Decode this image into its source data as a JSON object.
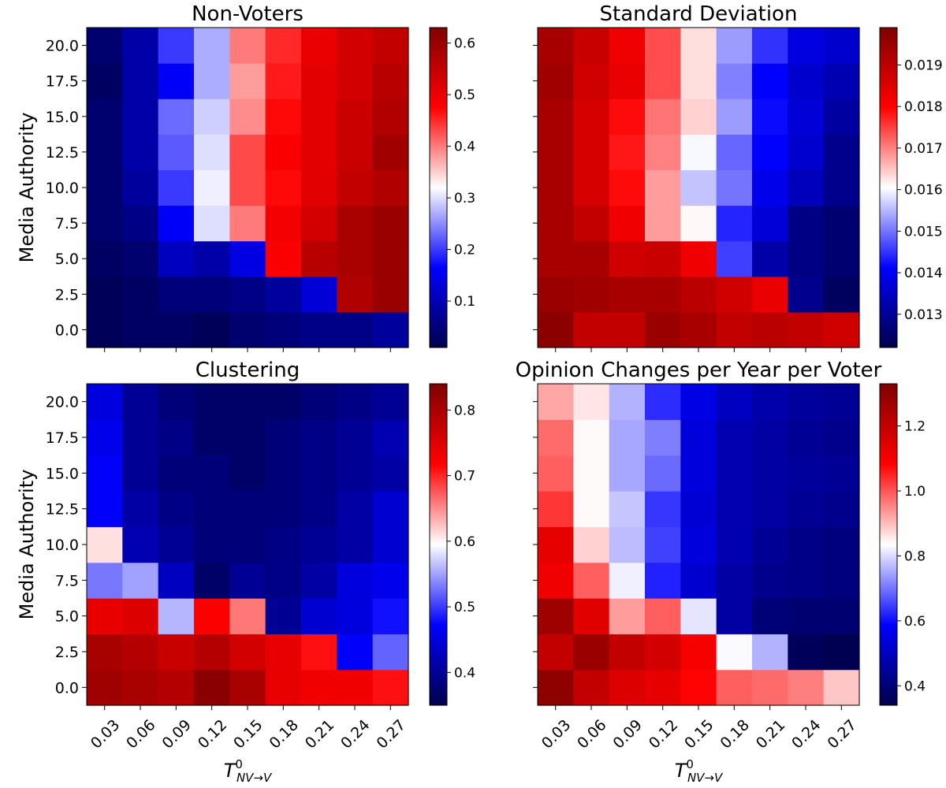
{
  "shared_axes": {
    "x_ticks": [
      "0.03",
      "0.06",
      "0.09",
      "0.12",
      "0.15",
      "0.18",
      "0.21",
      "0.24",
      "0.27"
    ],
    "y_ticks": [
      "0.0",
      "2.5",
      "5.0",
      "7.5",
      "10.0",
      "12.5",
      "15.0",
      "17.5",
      "20.0"
    ],
    "xlabel_main": "T",
    "xlabel_sup": "0",
    "xlabel_sub": "NV→V",
    "ylabel": "Media Authority"
  },
  "colormap": {
    "low": "#00004c",
    "mid": "#ffffff",
    "high": "#800000",
    "name": "seismic"
  },
  "chart_data": [
    {
      "type": "heatmap",
      "title": "Non-Voters",
      "x": [
        "0.03",
        "0.06",
        "0.09",
        "0.12",
        "0.15",
        "0.18",
        "0.21",
        "0.24",
        "0.27"
      ],
      "y": [
        "0.0",
        "2.5",
        "5.0",
        "7.5",
        "10.0",
        "12.5",
        "15.0",
        "17.5",
        "20.0"
      ],
      "vmin": 0.01,
      "vmax": 0.63,
      "colorbar_ticks": [
        "0.1",
        "0.2",
        "0.3",
        "0.4",
        "0.5",
        "0.6"
      ],
      "colorbar_tick_values": [
        0.1,
        0.2,
        0.3,
        0.4,
        0.5,
        0.6
      ],
      "values": [
        [
          0.02,
          0.03,
          0.03,
          0.02,
          0.04,
          0.05,
          0.06,
          0.06,
          0.08
        ],
        [
          0.02,
          0.03,
          0.05,
          0.05,
          0.06,
          0.08,
          0.13,
          0.57,
          0.6
        ],
        [
          0.03,
          0.04,
          0.11,
          0.09,
          0.14,
          0.48,
          0.56,
          0.58,
          0.6
        ],
        [
          0.04,
          0.06,
          0.16,
          0.3,
          0.4,
          0.49,
          0.53,
          0.58,
          0.6
        ],
        [
          0.04,
          0.08,
          0.2,
          0.31,
          0.43,
          0.47,
          0.51,
          0.55,
          0.57
        ],
        [
          0.04,
          0.09,
          0.22,
          0.3,
          0.43,
          0.48,
          0.51,
          0.54,
          0.59
        ],
        [
          0.04,
          0.09,
          0.23,
          0.29,
          0.39,
          0.47,
          0.51,
          0.54,
          0.57
        ],
        [
          0.03,
          0.09,
          0.16,
          0.27,
          0.38,
          0.46,
          0.51,
          0.53,
          0.56
        ],
        [
          0.04,
          0.09,
          0.2,
          0.27,
          0.4,
          0.45,
          0.5,
          0.53,
          0.55
        ]
      ]
    },
    {
      "type": "heatmap",
      "title": "Standard Deviation",
      "x": [
        "0.03",
        "0.06",
        "0.09",
        "0.12",
        "0.15",
        "0.18",
        "0.21",
        "0.24",
        "0.27"
      ],
      "y": [
        "0.0",
        "2.5",
        "5.0",
        "7.5",
        "10.0",
        "12.5",
        "15.0",
        "17.5",
        "20.0"
      ],
      "vmin": 0.0122,
      "vmax": 0.0199,
      "colorbar_ticks": [
        "0.013",
        "0.014",
        "0.015",
        "0.016",
        "0.017",
        "0.018",
        "0.019"
      ],
      "colorbar_tick_values": [
        0.013,
        0.014,
        0.015,
        0.016,
        0.017,
        0.018,
        0.019
      ],
      "values": [
        [
          0.0197,
          0.0189,
          0.0189,
          0.0195,
          0.0193,
          0.0189,
          0.019,
          0.0189,
          0.0187
        ],
        [
          0.0195,
          0.0194,
          0.0193,
          0.0193,
          0.019,
          0.0187,
          0.0183,
          0.0129,
          0.0124
        ],
        [
          0.0193,
          0.0193,
          0.0187,
          0.0188,
          0.0182,
          0.0146,
          0.0132,
          0.0128,
          0.0126
        ],
        [
          0.0193,
          0.0189,
          0.0182,
          0.0168,
          0.0161,
          0.0144,
          0.0137,
          0.0128,
          0.0126
        ],
        [
          0.0193,
          0.0186,
          0.0179,
          0.0168,
          0.0156,
          0.015,
          0.0139,
          0.0134,
          0.0129
        ],
        [
          0.0193,
          0.0186,
          0.0178,
          0.017,
          0.016,
          0.0149,
          0.0141,
          0.0136,
          0.0129
        ],
        [
          0.0193,
          0.0186,
          0.0179,
          0.0171,
          0.0164,
          0.0153,
          0.0142,
          0.0137,
          0.0131
        ],
        [
          0.0194,
          0.0187,
          0.0183,
          0.0174,
          0.0163,
          0.0151,
          0.0141,
          0.0136,
          0.0133
        ],
        [
          0.0193,
          0.0188,
          0.0182,
          0.0174,
          0.0163,
          0.0153,
          0.0145,
          0.0138,
          0.0136
        ]
      ]
    },
    {
      "type": "heatmap",
      "title": "Clustering",
      "x": [
        "0.03",
        "0.06",
        "0.09",
        "0.12",
        "0.15",
        "0.18",
        "0.21",
        "0.24",
        "0.27"
      ],
      "y": [
        "0.0",
        "2.5",
        "5.0",
        "7.5",
        "10.0",
        "12.5",
        "15.0",
        "17.5",
        "20.0"
      ],
      "vmin": 0.35,
      "vmax": 0.84,
      "colorbar_ticks": [
        "0.4",
        "0.5",
        "0.6",
        "0.7",
        "0.8"
      ],
      "colorbar_tick_values": [
        0.4,
        0.5,
        0.6,
        0.7,
        0.8
      ],
      "values": [
        [
          0.81,
          0.8,
          0.79,
          0.83,
          0.8,
          0.74,
          0.73,
          0.73,
          0.71
        ],
        [
          0.8,
          0.79,
          0.77,
          0.79,
          0.76,
          0.74,
          0.71,
          0.47,
          0.52
        ],
        [
          0.74,
          0.75,
          0.56,
          0.72,
          0.66,
          0.4,
          0.44,
          0.45,
          0.48
        ],
        [
          0.53,
          0.55,
          0.43,
          0.37,
          0.4,
          0.39,
          0.41,
          0.45,
          0.46
        ],
        [
          0.61,
          0.42,
          0.4,
          0.38,
          0.38,
          0.39,
          0.4,
          0.41,
          0.44
        ],
        [
          0.47,
          0.41,
          0.39,
          0.38,
          0.38,
          0.38,
          0.39,
          0.41,
          0.44
        ],
        [
          0.47,
          0.4,
          0.38,
          0.38,
          0.37,
          0.38,
          0.39,
          0.4,
          0.41
        ],
        [
          0.46,
          0.4,
          0.39,
          0.37,
          0.37,
          0.38,
          0.39,
          0.4,
          0.42
        ],
        [
          0.45,
          0.4,
          0.38,
          0.37,
          0.37,
          0.37,
          0.38,
          0.39,
          0.4
        ]
      ]
    },
    {
      "type": "heatmap",
      "title": "Opinion Changes per Year per Voter",
      "x": [
        "0.03",
        "0.06",
        "0.09",
        "0.12",
        "0.15",
        "0.18",
        "0.21",
        "0.24",
        "0.27"
      ],
      "y": [
        "0.0",
        "2.5",
        "5.0",
        "7.5",
        "10.0",
        "12.5",
        "15.0",
        "17.5",
        "20.0"
      ],
      "vmin": 0.34,
      "vmax": 1.33,
      "colorbar_ticks": [
        "0.4",
        "0.6",
        "0.8",
        "1.0",
        "1.2"
      ],
      "colorbar_tick_values": [
        0.4,
        0.6,
        0.8,
        1.0,
        1.2
      ],
      "values": [
        [
          1.3,
          1.2,
          1.15,
          1.13,
          1.08,
          0.99,
          0.98,
          0.96,
          0.89
        ],
        [
          1.2,
          1.28,
          1.2,
          1.17,
          1.1,
          0.83,
          0.76,
          0.36,
          0.35
        ],
        [
          1.27,
          1.14,
          0.93,
          0.99,
          0.81,
          0.46,
          0.4,
          0.39,
          0.39
        ],
        [
          1.11,
          0.99,
          0.82,
          0.62,
          0.52,
          0.46,
          0.43,
          0.42,
          0.41
        ],
        [
          1.13,
          0.88,
          0.77,
          0.65,
          0.54,
          0.48,
          0.44,
          0.42,
          0.41
        ],
        [
          1.03,
          0.84,
          0.78,
          0.64,
          0.53,
          0.48,
          0.46,
          0.44,
          0.43
        ],
        [
          0.99,
          0.84,
          0.75,
          0.69,
          0.54,
          0.48,
          0.46,
          0.45,
          0.44
        ],
        [
          0.98,
          0.84,
          0.75,
          0.71,
          0.54,
          0.48,
          0.46,
          0.44,
          0.43
        ],
        [
          0.92,
          0.86,
          0.76,
          0.63,
          0.55,
          0.5,
          0.47,
          0.45,
          0.44
        ]
      ]
    }
  ]
}
